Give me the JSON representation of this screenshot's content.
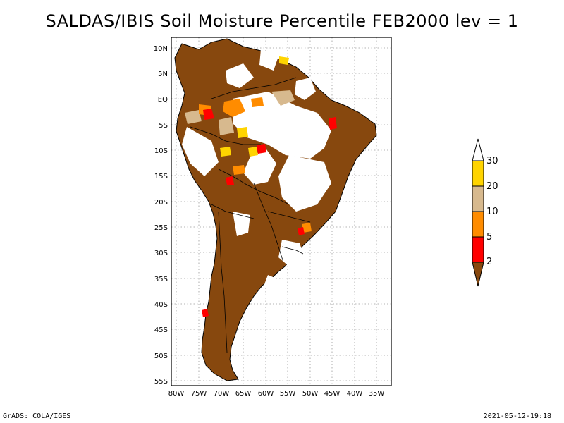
{
  "title": "SALDAS/IBIS Soil Moisture Percentile FEB2000 lev = 1",
  "footer_left": "GrADS: COLA/IGES",
  "footer_right": "2021-05-12-19:18",
  "lat_ticks": [
    "10N",
    "5N",
    "EQ",
    "5S",
    "10S",
    "15S",
    "20S",
    "25S",
    "30S",
    "35S",
    "40S",
    "45S",
    "50S",
    "55S"
  ],
  "lon_ticks": [
    "80W",
    "75W",
    "70W",
    "65W",
    "60W",
    "55W",
    "50W",
    "45W",
    "40W",
    "35W"
  ],
  "colorbar": {
    "labels": [
      "30",
      "20",
      "10",
      "5",
      "2"
    ],
    "colors": {
      "above": "#ffffff",
      "c20_30": "#ffd400",
      "c10_20": "#d7b98e",
      "c5_10": "#ff8c00",
      "c2_5": "#ff0000",
      "below2": "#87480e"
    }
  },
  "land_color": "#87480e"
}
